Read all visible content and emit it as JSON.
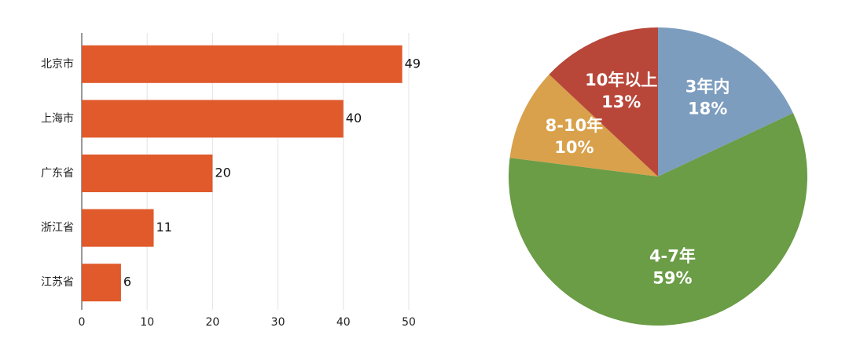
{
  "chart_data": [
    {
      "type": "bar",
      "orientation": "horizontal",
      "categories": [
        "北京市",
        "上海市",
        "广东省",
        "浙江省",
        "江苏省"
      ],
      "values": [
        49,
        40,
        20,
        11,
        6
      ],
      "color": "#e05a2b",
      "xlim": [
        0,
        50
      ],
      "xticks": [
        0,
        10,
        20,
        30,
        40,
        50
      ],
      "grid": true
    },
    {
      "type": "pie",
      "categories": [
        "3年内",
        "4-7年",
        "8-10年",
        "10年以上"
      ],
      "values": [
        18,
        59,
        10,
        13
      ],
      "value_labels": [
        "18%",
        "59%",
        "10%",
        "13%"
      ],
      "colors": [
        "#7d9dbf",
        "#6b9c46",
        "#d9a14b",
        "#b8473a"
      ]
    }
  ]
}
